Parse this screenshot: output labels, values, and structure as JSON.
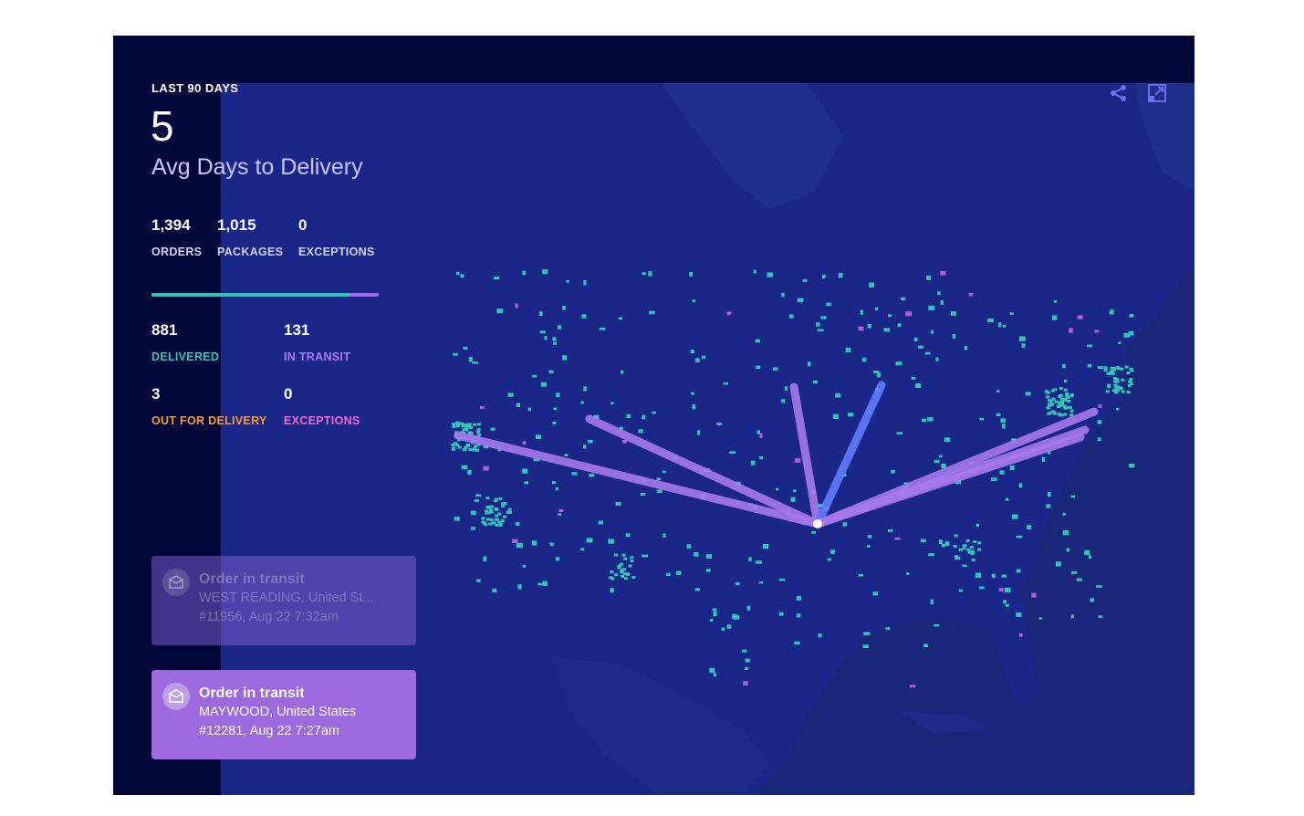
{
  "header": {
    "period_label": "LAST 90 DAYS",
    "metric_value": "5",
    "metric_label": "Avg Days to Delivery"
  },
  "summary": [
    {
      "value": "1,394",
      "label": "ORDERS"
    },
    {
      "value": "1,015",
      "label": "PACKAGES"
    },
    {
      "value": "0",
      "label": "EXCEPTIONS"
    }
  ],
  "progress": {
    "delivered_fraction": 0.87,
    "in_transit_fraction": 0.13
  },
  "status": [
    {
      "value": "881",
      "label": "DELIVERED",
      "color": "#37c3b8"
    },
    {
      "value": "131",
      "label": "IN TRANSIT",
      "color": "#a77cf2"
    },
    {
      "value": "3",
      "label": "OUT FOR DELIVERY",
      "color": "#f29a36"
    },
    {
      "value": "0",
      "label": "EXCEPTIONS",
      "color": "#ef6bd0"
    }
  ],
  "notifications": [
    {
      "title": "Order in transit",
      "location": "WEST READING, United St...",
      "detail": "#11956, Aug 22 7:32am",
      "state": "faded",
      "icon": "package-icon"
    },
    {
      "title": "Order in transit",
      "location": "MAYWOOD, United States",
      "detail": "#12281, Aug 22 7:27am",
      "state": "active",
      "icon": "package-icon"
    }
  ],
  "toolbar": {
    "share_icon": "share-icon",
    "expand_icon": "expand-icon"
  },
  "colors": {
    "background": "#02073a",
    "map_ocean": "#1a2778",
    "map_land": "#1b2788",
    "route_purple": "#a678ee",
    "route_blue": "#5f7cff",
    "dot_teal": "#2ec6b6",
    "dot_magenta": "#b05ddb"
  }
}
